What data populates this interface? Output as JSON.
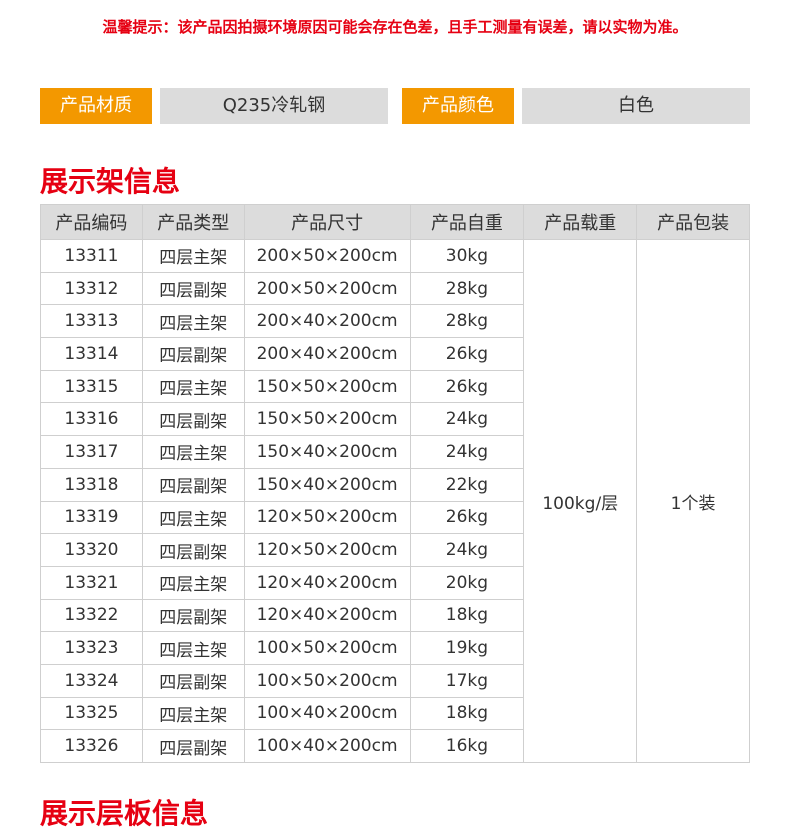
{
  "notice": "温馨提示：该产品因拍摄环境原因可能会存在色差，且手工测量有误差，请以实物为准。",
  "specs": {
    "material_label": "产品材质",
    "material_value": "Q235冷轧钢",
    "color_label": "产品颜色",
    "color_value": "白色"
  },
  "section_title": "展示架信息",
  "next_section_title": "展示层板信息",
  "table": {
    "headers": [
      "产品编码",
      "产品类型",
      "产品尺寸",
      "产品自重",
      "产品载重",
      "产品包装"
    ],
    "load": "100kg/层",
    "package": "1个装",
    "rows": [
      [
        "13311",
        "四层主架",
        "200×50×200cm",
        "30kg"
      ],
      [
        "13312",
        "四层副架",
        "200×50×200cm",
        "28kg"
      ],
      [
        "13313",
        "四层主架",
        "200×40×200cm",
        "28kg"
      ],
      [
        "13314",
        "四层副架",
        "200×40×200cm",
        "26kg"
      ],
      [
        "13315",
        "四层主架",
        "150×50×200cm",
        "26kg"
      ],
      [
        "13316",
        "四层副架",
        "150×50×200cm",
        "24kg"
      ],
      [
        "13317",
        "四层主架",
        "150×40×200cm",
        "24kg"
      ],
      [
        "13318",
        "四层副架",
        "150×40×200cm",
        "22kg"
      ],
      [
        "13319",
        "四层主架",
        "120×50×200cm",
        "26kg"
      ],
      [
        "13320",
        "四层副架",
        "120×50×200cm",
        "24kg"
      ],
      [
        "13321",
        "四层主架",
        "120×40×200cm",
        "20kg"
      ],
      [
        "13322",
        "四层副架",
        "120×40×200cm",
        "18kg"
      ],
      [
        "13323",
        "四层主架",
        "100×50×200cm",
        "19kg"
      ],
      [
        "13324",
        "四层副架",
        "100×50×200cm",
        "17kg"
      ],
      [
        "13325",
        "四层主架",
        "100×40×200cm",
        "18kg"
      ],
      [
        "13326",
        "四层副架",
        "100×40×200cm",
        "16kg"
      ]
    ]
  },
  "colors": {
    "accent_red": "#e60012",
    "tag_orange": "#f39800",
    "tag_gray": "#dcdcdc"
  }
}
